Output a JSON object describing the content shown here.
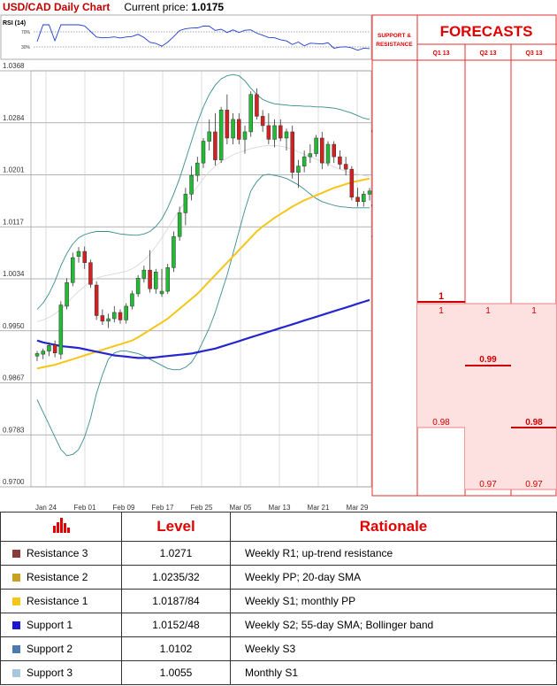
{
  "header": {
    "pair_title": "USD/CAD Daily Chart",
    "price_label": "Current price: ",
    "price_value": "1.0175"
  },
  "rsi": {
    "label": "RSI (14)",
    "levels": [
      "70%",
      "30%"
    ]
  },
  "chart_data": [
    {
      "type": "candlestick",
      "title": "USD/CAD Daily Chart",
      "ylim": [
        0.97,
        1.0368
      ],
      "y_ticks": [
        "1.0368",
        "1.0284",
        "1.0201",
        "1.0117",
        "1.0034",
        "0.9950",
        "0.9867",
        "0.9783",
        "0.9700"
      ],
      "x_ticks": [
        "Jan 24",
        "Feb 01",
        "Feb 09",
        "Feb 17",
        "Feb 25",
        "Mar 05",
        "Mar 13",
        "Mar 21",
        "Mar 29"
      ],
      "candles": [
        [
          0.991,
          0.9918,
          0.9902,
          0.9914
        ],
        [
          0.9913,
          0.9922,
          0.9905,
          0.9918
        ],
        [
          0.9918,
          0.9932,
          0.991,
          0.9927
        ],
        [
          0.9928,
          0.9935,
          0.9908,
          0.9915
        ],
        [
          0.9913,
          0.9998,
          0.9905,
          0.9992
        ],
        [
          0.999,
          1.0035,
          0.9985,
          1.0028
        ],
        [
          1.0028,
          1.0076,
          1.0022,
          1.0068
        ],
        [
          1.007,
          1.0085,
          1.006,
          1.0078
        ],
        [
          1.0078,
          1.0086,
          1.005,
          1.006
        ],
        [
          1.006,
          1.0065,
          1.002,
          1.0025
        ],
        [
          1.0024,
          1.003,
          0.9968,
          0.9975
        ],
        [
          0.9975,
          0.9985,
          0.996,
          0.9966
        ],
        [
          0.9966,
          0.9978,
          0.9955,
          0.997
        ],
        [
          0.997,
          0.999,
          0.9964,
          0.998
        ],
        [
          0.998,
          0.9985,
          0.9962,
          0.9968
        ],
        [
          0.9968,
          0.9995,
          0.9962,
          0.999
        ],
        [
          0.999,
          1.0015,
          0.9985,
          1.001
        ],
        [
          1.001,
          1.004,
          1.0005,
          1.0035
        ],
        [
          1.0035,
          1.0055,
          1.0028,
          1.0048
        ],
        [
          1.0048,
          1.008,
          1.0012,
          1.0018
        ],
        [
          1.0018,
          1.005,
          1.001,
          1.0045
        ],
        [
          1.001,
          1.005,
          1.0005,
          1.0014
        ],
        [
          1.0014,
          1.0058,
          1.001,
          1.0052
        ],
        [
          1.0052,
          1.011,
          1.0045,
          1.0102
        ],
        [
          1.0102,
          1.015,
          1.0095,
          1.014
        ],
        [
          1.014,
          1.018,
          1.012,
          1.017
        ],
        [
          1.017,
          1.0215,
          1.016,
          1.02
        ],
        [
          1.02,
          1.023,
          1.019,
          1.022
        ],
        [
          1.022,
          1.026,
          1.0212,
          1.0255
        ],
        [
          1.0255,
          1.029,
          1.024,
          1.027
        ],
        [
          1.027,
          1.03,
          1.0216,
          1.0225
        ],
        [
          1.0225,
          1.031,
          1.022,
          1.0305
        ],
        [
          1.0305,
          1.033,
          1.025,
          1.026
        ],
        [
          1.026,
          1.03,
          1.025,
          1.029
        ],
        [
          1.029,
          1.03,
          1.025,
          1.0258
        ],
        [
          1.0258,
          1.028,
          1.0235,
          1.027
        ],
        [
          1.027,
          1.0335,
          1.0262,
          1.033
        ],
        [
          1.033,
          1.034,
          1.029,
          1.0295
        ],
        [
          1.0295,
          1.0305,
          1.027,
          1.028
        ],
        [
          1.028,
          1.03,
          1.025,
          1.0258
        ],
        [
          1.0258,
          1.029,
          1.0245,
          1.028
        ],
        [
          1.028,
          1.029,
          1.0255,
          1.026
        ],
        [
          1.026,
          1.0275,
          1.024,
          1.027
        ],
        [
          1.027,
          1.028,
          1.0195,
          1.0205
        ],
        [
          1.0205,
          1.0225,
          1.018,
          1.0215
        ],
        [
          1.0215,
          1.024,
          1.0205,
          1.023
        ],
        [
          1.023,
          1.025,
          1.022,
          1.0235
        ],
        [
          1.0235,
          1.0265,
          1.023,
          1.026
        ],
        [
          1.026,
          1.027,
          1.021,
          1.022
        ],
        [
          1.022,
          1.0255,
          1.0215,
          1.025
        ],
        [
          1.025,
          1.0255,
          1.022,
          1.023
        ],
        [
          1.023,
          1.024,
          1.021,
          1.0218
        ],
        [
          1.0218,
          1.023,
          1.02,
          1.021
        ],
        [
          1.021,
          1.0215,
          1.016,
          1.0165
        ],
        [
          1.0165,
          1.018,
          1.015,
          1.0158
        ],
        [
          1.0158,
          1.0175,
          1.015,
          1.017
        ],
        [
          1.017,
          1.018,
          1.016,
          1.0175
        ]
      ],
      "overlays": {
        "sma20": [
          0.9965,
          0.9968,
          0.9972,
          0.9978,
          0.9985,
          0.9995,
          1.0005,
          1.0014,
          1.0022,
          1.003,
          1.0035,
          1.0038,
          1.004,
          1.0042,
          1.0044,
          1.0046,
          1.005,
          1.0056,
          1.0064,
          1.0074,
          1.0086,
          1.01,
          1.0115,
          1.013,
          1.0145,
          1.0158,
          1.017,
          1.0182,
          1.0195,
          1.0206,
          1.0215,
          1.0222,
          1.0228,
          1.0233,
          1.0237,
          1.024,
          1.0243,
          1.0245,
          1.0247,
          1.0248,
          1.0248,
          1.0247,
          1.0245,
          1.0242,
          1.0238,
          1.0234,
          1.023,
          1.0226,
          1.0222,
          1.0218,
          1.0214,
          1.021,
          1.0207,
          1.0204,
          1.0202,
          1.02,
          1.0198
        ],
        "sma55": [
          0.989,
          0.9892,
          0.9894,
          0.9896,
          0.9899,
          0.9902,
          0.9905,
          0.9908,
          0.9911,
          0.9914,
          0.9917,
          0.992,
          0.9923,
          0.9926,
          0.9929,
          0.9932,
          0.9935,
          0.994,
          0.9946,
          0.9952,
          0.9958,
          0.9964,
          0.997,
          0.9978,
          0.9986,
          0.9994,
          1.0002,
          1.001,
          1.002,
          1.003,
          1.004,
          1.005,
          1.006,
          1.007,
          1.008,
          1.009,
          1.01,
          1.011,
          1.0118,
          1.0125,
          1.0132,
          1.0138,
          1.0144,
          1.015,
          1.0155,
          1.016,
          1.0164,
          1.0168,
          1.0172,
          1.0176,
          1.018,
          1.0183,
          1.0186,
          1.0189,
          1.0191,
          1.0193,
          1.0195
        ],
        "monthly": [
          0.9935,
          0.9932,
          0.993,
          0.9928,
          0.9926,
          0.9925,
          0.9924,
          0.9923,
          0.9921,
          0.9919,
          0.9917,
          0.9915,
          0.9913,
          0.9911,
          0.991,
          0.9909,
          0.9908,
          0.9907,
          0.9907,
          0.9907,
          0.9908,
          0.9909,
          0.991,
          0.9911,
          0.9912,
          0.9913,
          0.9914,
          0.9916,
          0.9918,
          0.992,
          0.9922,
          0.9925,
          0.9928,
          0.9931,
          0.9934,
          0.9937,
          0.994,
          0.9943,
          0.9946,
          0.9949,
          0.9952,
          0.9955,
          0.9958,
          0.9961,
          0.9964,
          0.9967,
          0.997,
          0.9973,
          0.9976,
          0.9979,
          0.9982,
          0.9985,
          0.9988,
          0.9991,
          0.9994,
          0.9997,
          1.0
        ],
        "bb_upper": [
          0.9985,
          0.9995,
          1.001,
          1.003,
          1.0055,
          1.0075,
          1.009,
          1.01,
          1.0105,
          1.0108,
          1.011,
          1.011,
          1.011,
          1.0108,
          1.0106,
          1.0105,
          1.0104,
          1.0104,
          1.0106,
          1.011,
          1.0118,
          1.013,
          1.0148,
          1.017,
          1.0195,
          1.0225,
          1.0255,
          1.0285,
          1.031,
          1.033,
          1.0345,
          1.0355,
          1.036,
          1.0362,
          1.036,
          1.0352,
          1.034,
          1.033,
          1.0322,
          1.0318,
          1.0315,
          1.0314,
          1.0313,
          1.0312,
          1.0312,
          1.0311,
          1.0311,
          1.031,
          1.031,
          1.0309,
          1.0308,
          1.0306,
          1.0303,
          1.03,
          1.0296,
          1.0292,
          1.029
        ],
        "bb_lower": [
          0.984,
          0.982,
          0.98,
          0.978,
          0.976,
          0.975,
          0.9752,
          0.976,
          0.978,
          0.981,
          0.985,
          0.988,
          0.9905,
          0.9915,
          0.9918,
          0.9918,
          0.9916,
          0.9914,
          0.991,
          0.9905,
          0.99,
          0.9895,
          0.989,
          0.9888,
          0.9888,
          0.9892,
          0.99,
          0.9915,
          0.9935,
          0.9955,
          0.998,
          1.001,
          1.004,
          1.0075,
          1.011,
          1.0145,
          1.0175,
          1.019,
          1.02,
          1.0202,
          1.02,
          1.0198,
          1.0195,
          1.019,
          1.0185,
          1.0178,
          1.017,
          1.0163,
          1.0158,
          1.0155,
          1.0152,
          1.015,
          1.0149,
          1.0148,
          1.0148,
          1.0148,
          1.0148
        ]
      },
      "levels": [
        {
          "value": 1.0271,
          "label": "1.0271",
          "color": "#7a1f1f"
        },
        {
          "value": 1.0235,
          "label": "1.0235",
          "color": "#d6a030"
        },
        {
          "value": 1.0187,
          "label": "1.0187",
          "color": "#f5cc1a"
        },
        {
          "value": 1.0152,
          "label": "1.0152",
          "color": "#1f3ccf"
        },
        {
          "value": 1.0102,
          "label": "1.0102",
          "color": "#4a7aa8"
        },
        {
          "value": 1.0055,
          "label": "1.0055",
          "color": "#a8c8d8"
        }
      ]
    },
    {
      "type": "table",
      "title": "FORECASTS",
      "side_header": [
        "SUPPORT &",
        "RESISTANCE"
      ],
      "categories": [
        "Q1 13",
        "Q2 13",
        "Q3 13"
      ],
      "quarters": [
        {
          "label": "Q1 13",
          "high": "1",
          "mid": "1",
          "low": "0.98",
          "high_v": 1.0,
          "low_v": 0.98
        },
        {
          "label": "Q2 13",
          "high": "1",
          "mid": "0.99",
          "low": "0.97",
          "high_v": 1.0,
          "low_v": 0.97
        },
        {
          "label": "Q3 13",
          "high": "1",
          "mid": "0.98",
          "low": "0.97",
          "high_v": 1.0,
          "low_v": 0.97
        }
      ]
    }
  ],
  "levels_table": {
    "headers": [
      "Level",
      "Rationale"
    ],
    "rows": [
      {
        "name": "Resistance 3",
        "level": "1.0271",
        "rationale": "Weekly R1; up-trend resistance",
        "color": "#8b3a3a"
      },
      {
        "name": "Resistance 2",
        "level": "1.0235/32",
        "rationale": "Weekly PP; 20-day SMA",
        "color": "#c9a020"
      },
      {
        "name": "Resistance 1",
        "level": "1.0187/84",
        "rationale": "Weekly S1; monthly PP",
        "color": "#f5c518"
      },
      {
        "name": "Support 1",
        "level": "1.0152/48",
        "rationale": "Weekly S2; 55-day SMA; Bollinger band",
        "color": "#1a1acc"
      },
      {
        "name": "Support 2",
        "level": "1.0102",
        "rationale": "Weekly S3",
        "color": "#4a7ab0"
      },
      {
        "name": "Support 3",
        "level": "1.0055",
        "rationale": "Monthly S1",
        "color": "#a9c6e0"
      }
    ]
  }
}
